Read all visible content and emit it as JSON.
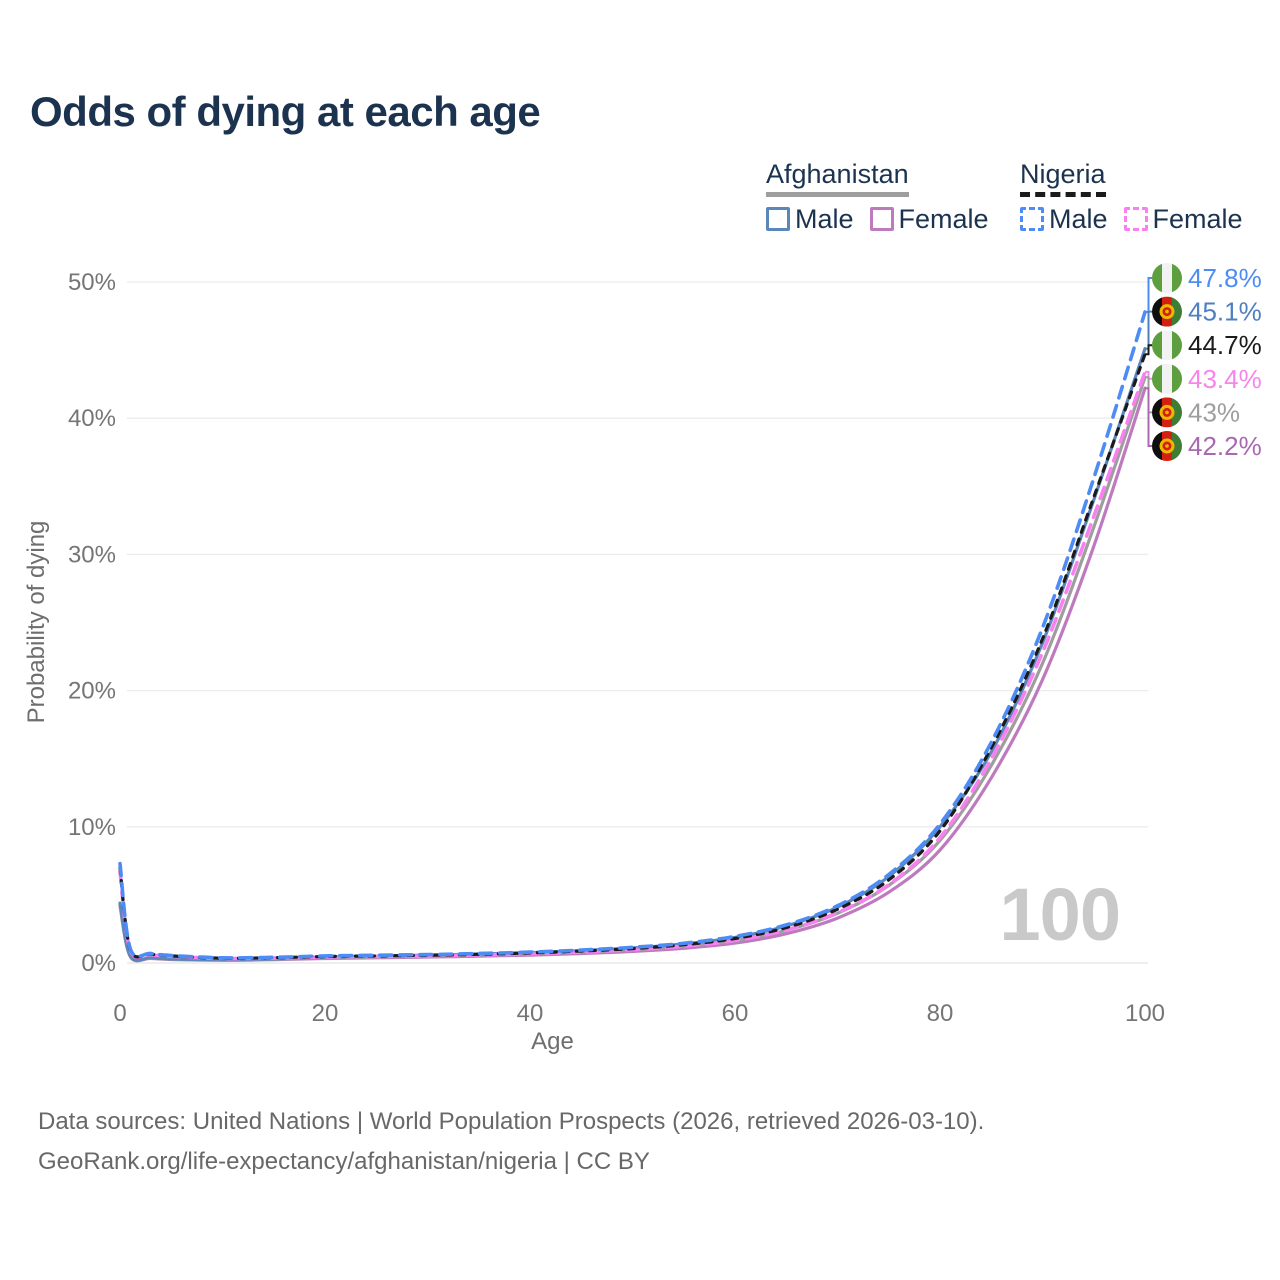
{
  "page": {
    "title": "Odds of dying at each age",
    "watermark_age": "100"
  },
  "legend": {
    "groups": [
      {
        "id": "afghanistan",
        "label": "Afghanistan",
        "line_style": "solid",
        "underline_color": "#9e9e9e",
        "items": [
          {
            "label": "Male",
            "color": "#5b86ba",
            "style": "solid"
          },
          {
            "label": "Female",
            "color": "#bd7abf",
            "style": "solid"
          }
        ]
      },
      {
        "id": "nigeria",
        "label": "Nigeria",
        "line_style": "dashed",
        "underline_color": "#1b1b1b",
        "items": [
          {
            "label": "Male",
            "color": "#4e8cf5",
            "style": "dashed"
          },
          {
            "label": "Female",
            "color": "#fa80f2",
            "style": "dashed"
          }
        ]
      }
    ]
  },
  "chart_data": {
    "type": "line",
    "title": "Odds of dying at each age",
    "xlabel": "Age",
    "ylabel": "Probability of dying",
    "xlim": [
      0,
      100
    ],
    "ylim": [
      0,
      50
    ],
    "grid": true,
    "legend_position": "top-right",
    "x_ticks": [
      0,
      20,
      40,
      60,
      80,
      100
    ],
    "y_ticks": [
      {
        "value": 0,
        "label": "0%"
      },
      {
        "value": 10,
        "label": "10%"
      },
      {
        "value": 20,
        "label": "20%"
      },
      {
        "value": 30,
        "label": "30%"
      },
      {
        "value": 40,
        "label": "40%"
      },
      {
        "value": 50,
        "label": "50%"
      }
    ],
    "ages": [
      0,
      1,
      3,
      5,
      10,
      15,
      20,
      25,
      30,
      35,
      40,
      45,
      50,
      55,
      60,
      65,
      70,
      75,
      80,
      85,
      90,
      95,
      100
    ],
    "series": [
      {
        "id": "afghanistan-female",
        "name": "Afghanistan Female",
        "country": "Afghanistan",
        "sex": "female",
        "style": "solid",
        "dash": "",
        "color": "#bd7abf",
        "label_color": "#aa68b0",
        "end_label": "42.2%",
        "flag": "afghanistan",
        "values": [
          4.2,
          0.48,
          0.34,
          0.26,
          0.2,
          0.24,
          0.33,
          0.38,
          0.44,
          0.5,
          0.58,
          0.7,
          0.85,
          1.08,
          1.46,
          2.15,
          3.3,
          5.2,
          8.3,
          13.6,
          20.8,
          30.6,
          42.2
        ]
      },
      {
        "id": "afghanistan-total",
        "name": "Afghanistan (both sexes)",
        "country": "Afghanistan",
        "sex": "both",
        "style": "solid",
        "dash": "",
        "color": "#9e9e9e",
        "label_color": "#9e9e9e",
        "end_label": "43%",
        "flag": "afghanistan",
        "values": [
          4.3,
          0.5,
          0.36,
          0.28,
          0.22,
          0.27,
          0.37,
          0.43,
          0.5,
          0.57,
          0.66,
          0.79,
          0.96,
          1.22,
          1.64,
          2.4,
          3.65,
          5.7,
          9.0,
          14.5,
          22.0,
          32.0,
          43.0
        ]
      },
      {
        "id": "afghanistan-male",
        "name": "Afghanistan Male",
        "country": "Afghanistan",
        "sex": "male",
        "style": "solid",
        "dash": "",
        "color": "#5b86ba",
        "label_color": "#4d7fc1",
        "end_label": "45.1%",
        "flag": "afghanistan",
        "values": [
          4.4,
          0.52,
          0.38,
          0.3,
          0.24,
          0.3,
          0.42,
          0.5,
          0.58,
          0.66,
          0.76,
          0.91,
          1.1,
          1.4,
          1.88,
          2.72,
          4.1,
          6.35,
          10.0,
          15.5,
          23.5,
          34.0,
          45.1
        ]
      },
      {
        "id": "nigeria-female",
        "name": "Nigeria Female",
        "country": "Nigeria",
        "sex": "female",
        "style": "dashed",
        "dash": "12 8",
        "color": "#fa80f2",
        "label_color": "#f884ec",
        "end_label": "43.4%",
        "flag": "nigeria",
        "values": [
          6.7,
          0.95,
          0.62,
          0.49,
          0.33,
          0.36,
          0.44,
          0.48,
          0.52,
          0.59,
          0.68,
          0.81,
          0.98,
          1.24,
          1.66,
          2.42,
          3.7,
          5.75,
          9.2,
          15.0,
          22.8,
          32.8,
          43.4
        ]
      },
      {
        "id": "nigeria-total",
        "name": "Nigeria (both sexes)",
        "country": "Nigeria",
        "sex": "both",
        "style": "dashed",
        "dash": "6 7",
        "color": "#1b1b1b",
        "label_color": "#1b1b1b",
        "end_label": "44.7%",
        "flag": "nigeria",
        "values": [
          7.0,
          1.0,
          0.66,
          0.52,
          0.35,
          0.39,
          0.48,
          0.52,
          0.57,
          0.64,
          0.74,
          0.88,
          1.06,
          1.34,
          1.8,
          2.6,
          3.95,
          6.1,
          9.7,
          15.8,
          23.8,
          34.2,
          44.7
        ]
      },
      {
        "id": "nigeria-male",
        "name": "Nigeria Male",
        "country": "Nigeria",
        "sex": "male",
        "style": "dashed",
        "dash": "12 8",
        "color": "#4e8cf5",
        "label_color": "#4e8cf5",
        "end_label": "47.8%",
        "flag": "nigeria",
        "values": [
          7.3,
          1.05,
          0.7,
          0.55,
          0.38,
          0.42,
          0.52,
          0.57,
          0.62,
          0.7,
          0.8,
          0.95,
          1.15,
          1.45,
          1.95,
          2.8,
          4.2,
          6.5,
          10.2,
          16.2,
          24.6,
          35.6,
          47.8
        ]
      }
    ],
    "flag_colors": {
      "nigeria": {
        "green": "#5d9f3f",
        "white": "#f2f2f2"
      },
      "afghanistan": {
        "black": "#0f0f0f",
        "red": "#d32011",
        "green": "#3f7d36",
        "gold": "#edb800"
      }
    }
  },
  "footer": {
    "line1": "Data sources: United Nations | World Population Prospects (2026, retrieved 2026-03-10).",
    "line2": "GeoRank.org/life-expectancy/afghanistan/nigeria | CC BY"
  }
}
